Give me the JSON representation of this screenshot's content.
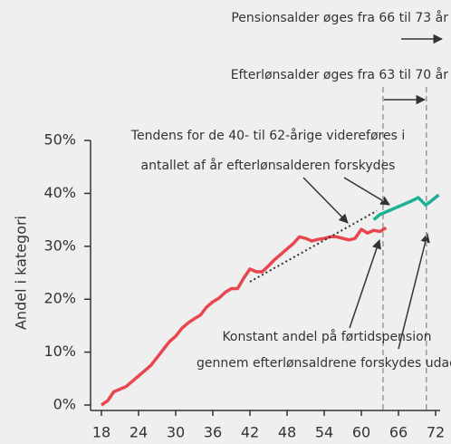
{
  "chart_data": {
    "type": "line",
    "y_label": "Andel i kategori",
    "xlim": [
      18,
      72
    ],
    "xticks": [
      18,
      24,
      30,
      36,
      42,
      48,
      54,
      60,
      66,
      72
    ],
    "ylim": [
      0,
      50
    ],
    "yticks": [
      {
        "value": 0,
        "label": "0%"
      },
      {
        "value": 10,
        "label": "10%"
      },
      {
        "value": 20,
        "label": "20%"
      },
      {
        "value": 30,
        "label": "30%"
      },
      {
        "value": 40,
        "label": "40%"
      },
      {
        "value": 50,
        "label": "50%"
      }
    ],
    "series": [
      {
        "color": "#e8474f",
        "style": "solid",
        "x": [
          18,
          19,
          20,
          21,
          22,
          23,
          24,
          25,
          26,
          27,
          28,
          29,
          30,
          31,
          32,
          33,
          34,
          35,
          36,
          37,
          38,
          39,
          40,
          41,
          42,
          43,
          44,
          45,
          46,
          47,
          48,
          49,
          50,
          51,
          52,
          53,
          54,
          55,
          56,
          57,
          58,
          59,
          60,
          61,
          62,
          63,
          64
        ],
        "values": [
          0,
          0.8,
          2.5,
          3,
          3.5,
          4.5,
          5.5,
          6.5,
          7.5,
          9,
          10.5,
          12,
          13,
          14.5,
          15.5,
          16.3,
          17,
          18.5,
          19.5,
          20.2,
          21.3,
          22,
          22,
          24,
          25.7,
          25.2,
          25.2,
          26.3,
          27.5,
          28.5,
          29.5,
          30.5,
          31.8,
          31.5,
          31,
          31.3,
          31.5,
          31.8,
          31.8,
          31.5,
          31.2,
          31.5,
          33.2,
          32.5,
          33,
          32.8,
          33.5
        ]
      },
      {
        "color": "#1fae96",
        "style": "solid",
        "x": [
          62,
          63,
          64,
          66,
          68,
          69.2,
          70.4,
          71,
          72.5
        ],
        "values": [
          35,
          36,
          36.5,
          37.5,
          38.5,
          39.2,
          37.8,
          38.3,
          39.7
        ]
      },
      {
        "color": "#333333",
        "style": "dotted",
        "x": [
          42,
          62.5
        ],
        "values": [
          23.3,
          36.7
        ]
      }
    ],
    "vlines": [
      63.5,
      70.5
    ],
    "annotations": [
      {
        "lines": [
          "Pensionsalder øges fra 66 til 73 år"
        ]
      },
      {
        "lines": [
          "Efterlønsalder øges fra 63 til 70 år"
        ]
      },
      {
        "lines": [
          "Tendens for de 40- til 62-årige videreføres i",
          "antallet af år efterlønsalderen forskydes"
        ]
      },
      {
        "lines": [
          "Konstant andel på førtidspension",
          "gennem efterlønsaldrene forskydes udad"
        ]
      }
    ]
  }
}
